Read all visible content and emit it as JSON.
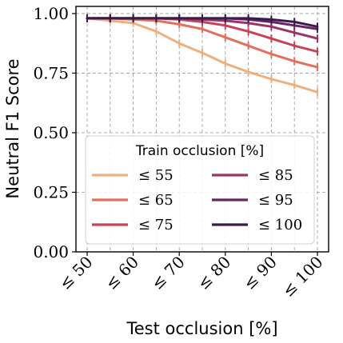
{
  "chart_data": {
    "type": "line",
    "xlabel": "Test occlusion [%]",
    "ylabel": "Neutral F1 Score",
    "x_tick_labels": [
      "≤ 50",
      "≤ 60",
      "≤ 70",
      "≤ 80",
      "≤ 90",
      "≤ 100"
    ],
    "x": [
      50,
      55,
      60,
      65,
      70,
      75,
      80,
      85,
      90,
      95,
      100
    ],
    "xlim": [
      50,
      100
    ],
    "y_ticks": [
      0.0,
      0.25,
      0.5,
      0.75,
      1.0
    ],
    "y_tick_labels": [
      "0.00",
      "0.25",
      "0.50",
      "0.75",
      "1.00"
    ],
    "ylim": [
      0.0,
      1.03
    ],
    "grid": true,
    "legend": {
      "title": "Train occlusion [%]",
      "placement": "lower-center",
      "columns": 2
    },
    "series": [
      {
        "name": "≤ 55",
        "color": "#eeb07e",
        "values": [
          0.98,
          0.97,
          0.96,
          0.925,
          0.875,
          0.835,
          0.79,
          0.755,
          0.725,
          0.7,
          0.67
        ]
      },
      {
        "name": "≤ 65",
        "color": "#e3705c",
        "values": [
          0.98,
          0.98,
          0.975,
          0.97,
          0.955,
          0.935,
          0.9,
          0.865,
          0.83,
          0.8,
          0.775
        ]
      },
      {
        "name": "≤ 75",
        "color": "#c84355",
        "values": [
          0.98,
          0.98,
          0.98,
          0.98,
          0.975,
          0.965,
          0.95,
          0.925,
          0.895,
          0.865,
          0.84
        ]
      },
      {
        "name": "≤ 85",
        "color": "#9d3466",
        "values": [
          0.98,
          0.98,
          0.98,
          0.98,
          0.98,
          0.975,
          0.97,
          0.96,
          0.945,
          0.92,
          0.895
        ]
      },
      {
        "name": "≤ 95",
        "color": "#6b2463",
        "values": [
          0.98,
          0.98,
          0.98,
          0.98,
          0.98,
          0.98,
          0.98,
          0.975,
          0.965,
          0.95,
          0.935
        ]
      },
      {
        "name": "≤ 100",
        "color": "#3b1b4e",
        "values": [
          0.98,
          0.98,
          0.98,
          0.98,
          0.98,
          0.98,
          0.98,
          0.98,
          0.975,
          0.965,
          0.945
        ]
      }
    ]
  }
}
